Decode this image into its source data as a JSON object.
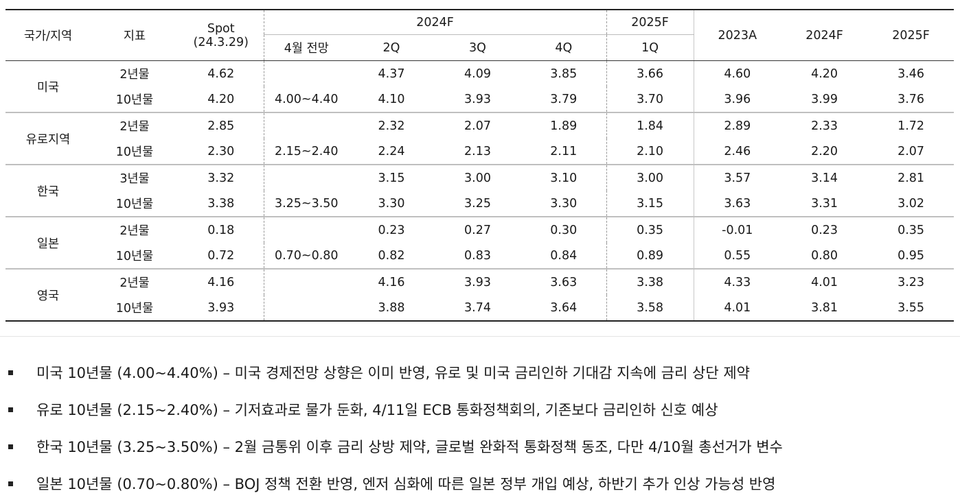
{
  "table": {
    "headers": {
      "country": "국가/지역",
      "indicator": "지표",
      "spot_line1": "Spot",
      "spot_line2": "(24.3.29)",
      "group_2024f": "2024F",
      "group_2025f": "2025F",
      "sub_april": "4월 전망",
      "sub_2q": "2Q",
      "sub_3q": "3Q",
      "sub_4q": "4Q",
      "sub_1q": "1Q",
      "year_2023a": "2023A",
      "year_2024f": "2024F",
      "year_2025f": "2025F"
    },
    "groups": [
      {
        "country": "미국",
        "rows": [
          {
            "indicator": "2년물",
            "spot": "4.62",
            "april": "",
            "q2": "4.37",
            "q3": "4.09",
            "q4": "3.85",
            "q1_25": "3.66",
            "y2023": "4.60",
            "y2024": "4.20",
            "y2025": "3.46"
          },
          {
            "indicator": "10년물",
            "spot": "4.20",
            "april": "4.00~4.40",
            "q2": "4.10",
            "q3": "3.93",
            "q4": "3.79",
            "q1_25": "3.70",
            "y2023": "3.96",
            "y2024": "3.99",
            "y2025": "3.76"
          }
        ]
      },
      {
        "country": "유로지역",
        "rows": [
          {
            "indicator": "2년물",
            "spot": "2.85",
            "april": "",
            "q2": "2.32",
            "q3": "2.07",
            "q4": "1.89",
            "q1_25": "1.84",
            "y2023": "2.89",
            "y2024": "2.33",
            "y2025": "1.72"
          },
          {
            "indicator": "10년물",
            "spot": "2.30",
            "april": "2.15~2.40",
            "q2": "2.24",
            "q3": "2.13",
            "q4": "2.11",
            "q1_25": "2.10",
            "y2023": "2.46",
            "y2024": "2.20",
            "y2025": "2.07"
          }
        ]
      },
      {
        "country": "한국",
        "rows": [
          {
            "indicator": "3년물",
            "spot": "3.32",
            "april": "",
            "q2": "3.15",
            "q3": "3.00",
            "q4": "3.10",
            "q1_25": "3.00",
            "y2023": "3.57",
            "y2024": "3.14",
            "y2025": "2.81"
          },
          {
            "indicator": "10년물",
            "spot": "3.38",
            "april": "3.25~3.50",
            "q2": "3.30",
            "q3": "3.25",
            "q4": "3.30",
            "q1_25": "3.15",
            "y2023": "3.63",
            "y2024": "3.31",
            "y2025": "3.02"
          }
        ]
      },
      {
        "country": "일본",
        "rows": [
          {
            "indicator": "2년물",
            "spot": "0.18",
            "april": "",
            "q2": "0.23",
            "q3": "0.27",
            "q4": "0.30",
            "q1_25": "0.35",
            "y2023": "-0.01",
            "y2024": "0.23",
            "y2025": "0.35"
          },
          {
            "indicator": "10년물",
            "spot": "0.72",
            "april": "0.70~0.80",
            "q2": "0.82",
            "q3": "0.83",
            "q4": "0.84",
            "q1_25": "0.89",
            "y2023": "0.55",
            "y2024": "0.80",
            "y2025": "0.95"
          }
        ]
      },
      {
        "country": "영국",
        "rows": [
          {
            "indicator": "2년물",
            "spot": "4.16",
            "april": "",
            "q2": "4.16",
            "q3": "3.93",
            "q4": "3.63",
            "q1_25": "3.38",
            "y2023": "4.33",
            "y2024": "4.01",
            "y2025": "3.23"
          },
          {
            "indicator": "10년물",
            "spot": "3.93",
            "april": "",
            "q2": "3.88",
            "q3": "3.74",
            "q4": "3.64",
            "q1_25": "3.58",
            "y2023": "4.01",
            "y2024": "3.81",
            "y2025": "3.55"
          }
        ]
      }
    ]
  },
  "notes": [
    "미국 10년물 (4.00~4.40%) – 미국 경제전망 상향은 이미 반영, 유로 및 미국 금리인하 기대감 지속에 금리 상단 제약",
    "유로 10년물 (2.15~2.40%) – 기저효과로 물가 둔화, 4/11일 ECB 통화정책회의, 기존보다 금리인하 신호 예상",
    "한국 10년물 (3.25~3.50%) – 2월 금통위 이후 금리 상방 제약, 글로벌 완화적 통화정책 동조, 다만 4/10월 총선거가 변수",
    "일본 10년물 (0.70~0.80%) – BOJ 정책 전환 반영, 엔저 심화에 따른 일본 정부 개입 예상, 하반기 추가 인상 가능성 반영"
  ]
}
